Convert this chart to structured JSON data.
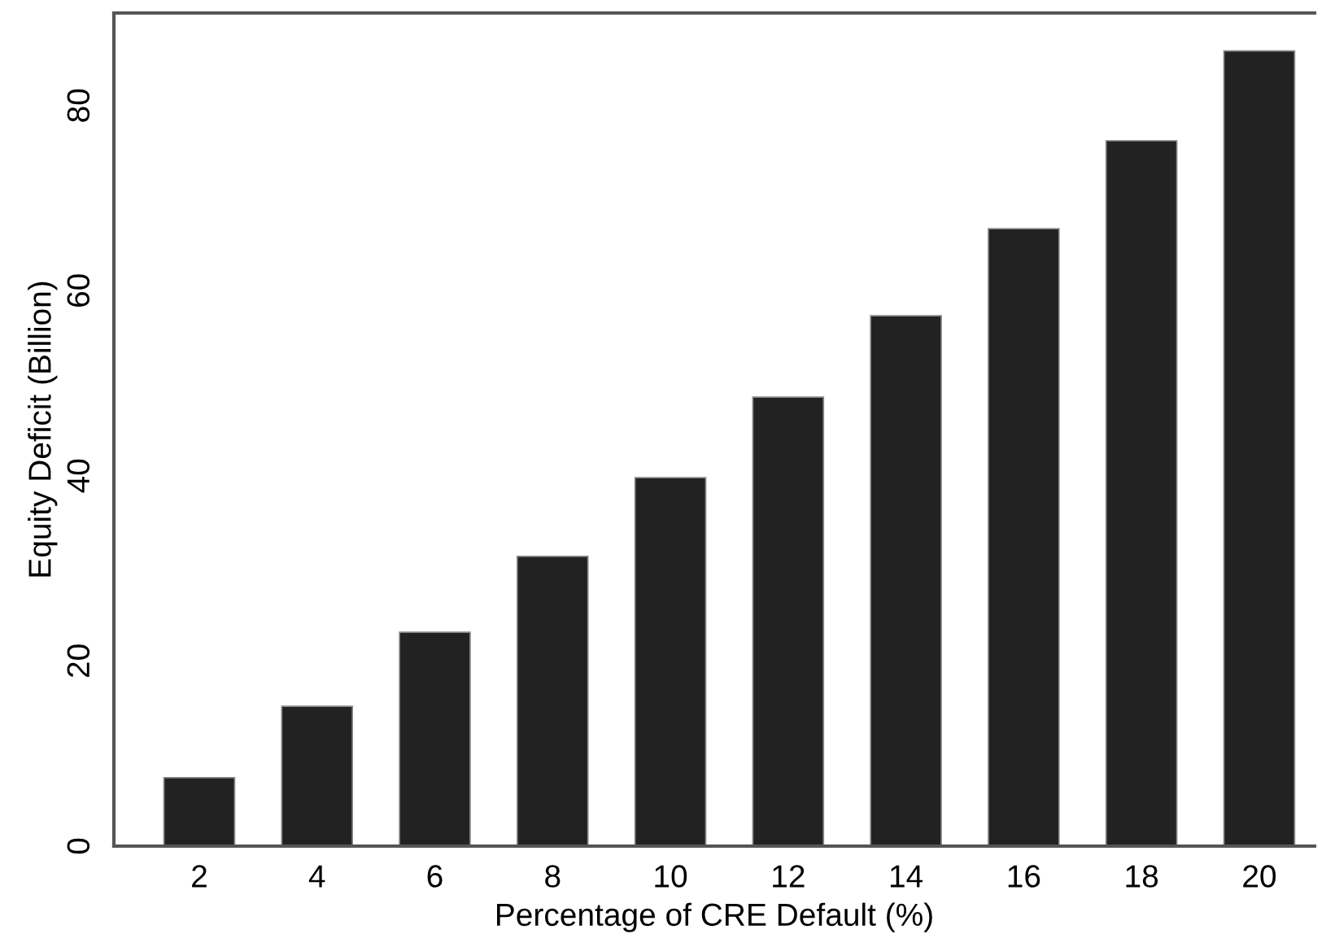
{
  "chart_data": {
    "type": "bar",
    "xlabel": "Percentage of CRE Default (%)",
    "ylabel": "Equity Deficit (Billion)",
    "categories": [
      "2",
      "4",
      "6",
      "8",
      "10",
      "12",
      "14",
      "16",
      "18",
      "20"
    ],
    "values": [
      7.4,
      15.1,
      23.1,
      31.3,
      39.8,
      48.5,
      57.3,
      66.7,
      76.2,
      85.9
    ],
    "color": "#222222",
    "ylim": [
      0,
      90
    ],
    "yticks": [
      0,
      20,
      40,
      60,
      80
    ],
    "grid": false,
    "legend": false
  }
}
